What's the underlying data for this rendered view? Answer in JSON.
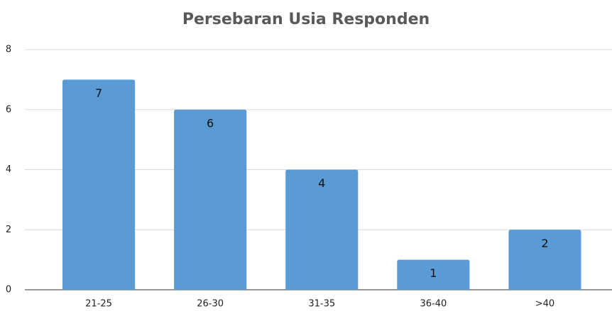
{
  "chart_data": {
    "type": "bar",
    "title": "Persebaran Usia Responden",
    "categories": [
      "21-25",
      "26-30",
      "31-35",
      "36-40",
      ">40"
    ],
    "values": [
      7,
      6,
      4,
      1,
      2
    ],
    "color": "#5b9bd5",
    "ylim": [
      0,
      8
    ],
    "yticks": [
      0,
      2,
      4,
      6,
      8
    ],
    "grid": true
  }
}
